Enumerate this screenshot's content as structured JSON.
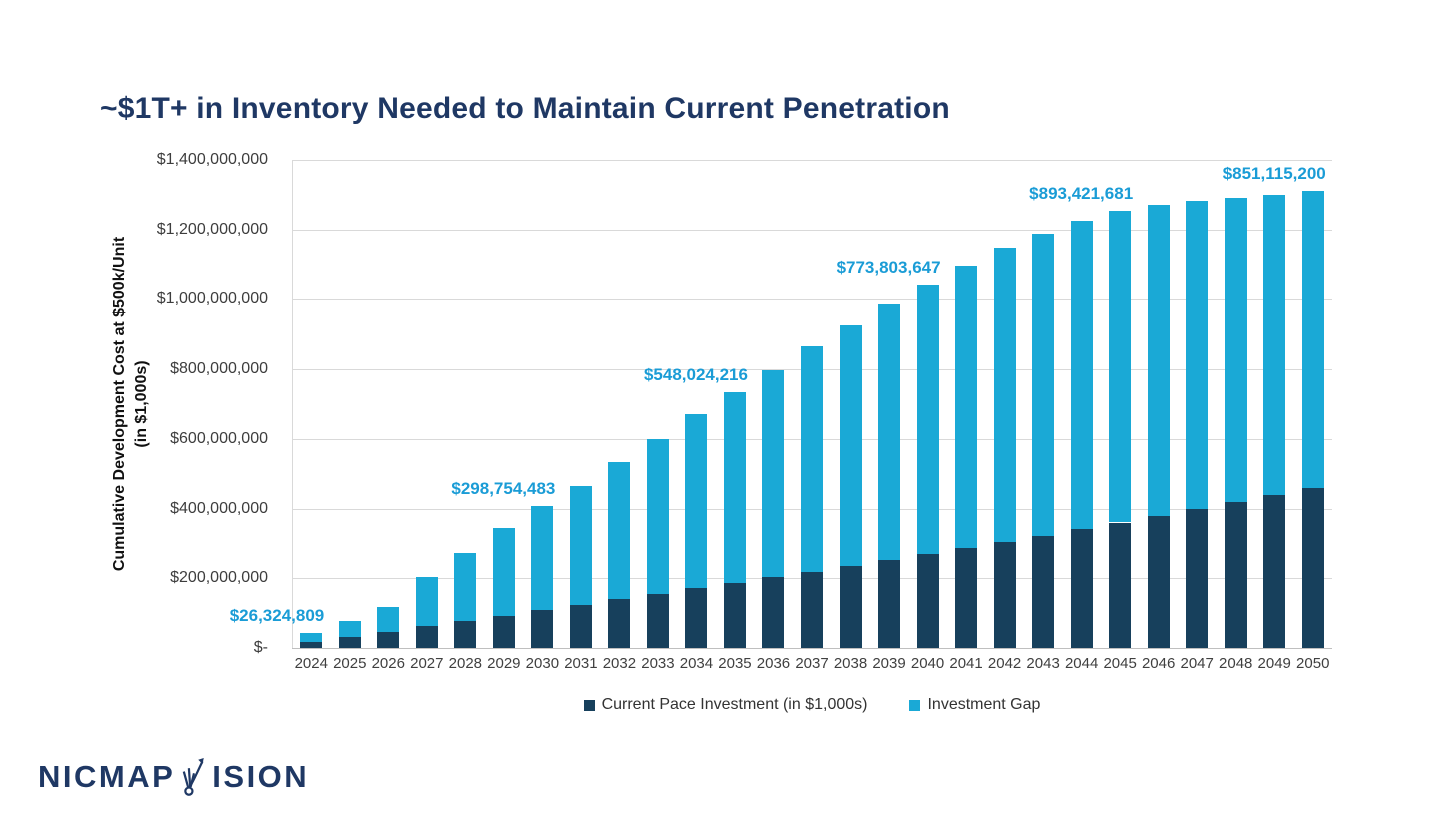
{
  "slide": {
    "title": "~$1T+ in Inventory Needed to Maintain Current Penetration"
  },
  "logo": {
    "text_left": "NICMAP",
    "text_right": "ISION",
    "glyph": "arrow-growth-v-icon"
  },
  "colors": {
    "title_navy": "#1f3864",
    "bar_dark_navy": "#17405c",
    "bar_light_blue": "#1aa9d6",
    "data_label_blue": "#1a9cd6",
    "gridline_gray": "#d9d9d9",
    "axis_text_gray": "#3d3d3d"
  },
  "chart_data": {
    "type": "bar",
    "stacked": true,
    "title": "~$1T+ in Inventory Needed to Maintain Current Penetration",
    "xlabel": "",
    "ylabel_line1": "Cumulative Development Cost at $500k/Unit",
    "ylabel_line2": "(in $1,000s)",
    "ylim": [
      0,
      1400000000
    ],
    "grid": true,
    "legend_position": "bottom",
    "y_tick_labels": [
      "$-",
      "$200,000,000",
      "$400,000,000",
      "$600,000,000",
      "$800,000,000",
      "$1,000,000,000",
      "$1,200,000,000",
      "$1,400,000,000"
    ],
    "categories": [
      "2024",
      "2025",
      "2026",
      "2027",
      "2028",
      "2029",
      "2030",
      "2031",
      "2032",
      "2033",
      "2034",
      "2035",
      "2036",
      "2037",
      "2038",
      "2039",
      "2040",
      "2041",
      "2042",
      "2043",
      "2044",
      "2045",
      "2046",
      "2047",
      "2048",
      "2049",
      "2050"
    ],
    "series": [
      {
        "name": "Current Pace Investment (in $1,000s)",
        "color": "#17405c",
        "values": [
          15900000,
          31000000,
          46500000,
          62000000,
          77500000,
          93000000,
          108500000,
          124000000,
          140000000,
          155500000,
          171000000,
          187000000,
          203000000,
          219000000,
          235500000,
          252000000,
          269000000,
          286500000,
          304500000,
          322500000,
          341000000,
          360000000,
          379500000,
          399000000,
          419000000,
          439500000,
          460000000
        ]
      },
      {
        "name": "Investment Gap",
        "color": "#1aa9d6",
        "values": [
          26324809,
          47000000,
          71500000,
          143000000,
          195500000,
          250000000,
          298754483,
          342000000,
          394000000,
          445500000,
          500000000,
          548024216,
          594000000,
          647000000,
          690500000,
          735000000,
          773803647,
          810500000,
          843500000,
          866500000,
          885000000,
          893421681,
          891500000,
          884000000,
          873000000,
          859500000,
          851115200
        ]
      }
    ],
    "annotations": [
      {
        "year": "2024",
        "label": "$26,324,809"
      },
      {
        "year": "2030",
        "label": "$298,754,483"
      },
      {
        "year": "2035",
        "label": "$548,024,216"
      },
      {
        "year": "2040",
        "label": "$773,803,647"
      },
      {
        "year": "2045",
        "label": "$893,421,681"
      },
      {
        "year": "2050",
        "label": "$851,115,200"
      }
    ]
  }
}
